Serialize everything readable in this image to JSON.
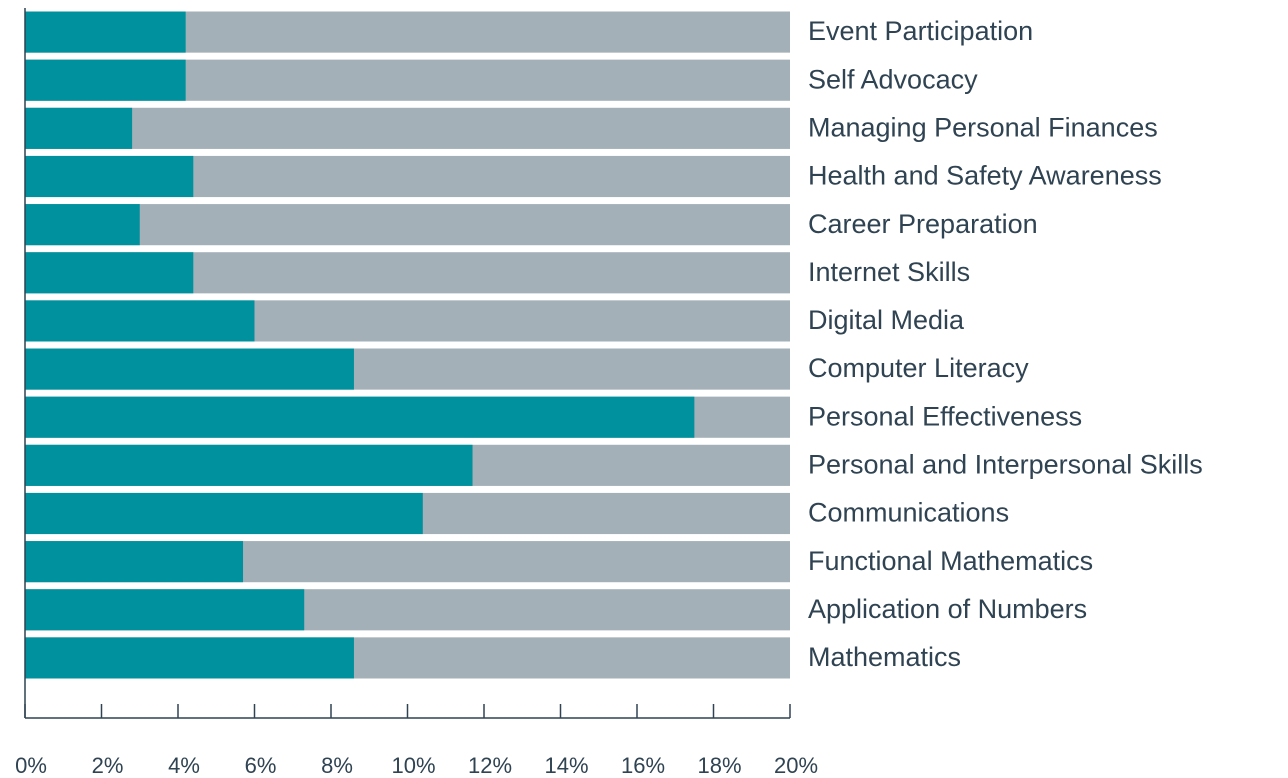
{
  "chart_data": {
    "type": "bar",
    "orientation": "horizontal",
    "categories": [
      "Event Participation",
      "Self Advocacy",
      "Managing Personal Finances",
      "Health and Safety Awareness",
      "Career Preparation",
      "Internet Skills",
      "Digital Media",
      "Computer Literacy",
      "Personal Effectiveness",
      "Personal and Interpersonal Skills",
      "Communications",
      "Functional Mathematics",
      "Application of Numbers",
      "Mathematics"
    ],
    "values": [
      4.2,
      4.2,
      2.8,
      4.4,
      3.0,
      4.4,
      6.0,
      8.6,
      17.5,
      11.7,
      10.4,
      5.7,
      7.3,
      8.6
    ],
    "color": "#00919e",
    "track_color": "#a3b0b8",
    "xlim": [
      0,
      20
    ],
    "xticks": [
      {
        "value": 0,
        "label": "0%"
      },
      {
        "value": 2,
        "label": "2%"
      },
      {
        "value": 4,
        "label": "4%"
      },
      {
        "value": 6,
        "label": "6%"
      },
      {
        "value": 8,
        "label": "8%"
      },
      {
        "value": 10,
        "label": "10%"
      },
      {
        "value": 12,
        "label": "12%"
      },
      {
        "value": 14,
        "label": "14%"
      },
      {
        "value": 16,
        "label": "16%"
      },
      {
        "value": 18,
        "label": "18%"
      },
      {
        "value": 20,
        "label": "20%"
      }
    ]
  }
}
